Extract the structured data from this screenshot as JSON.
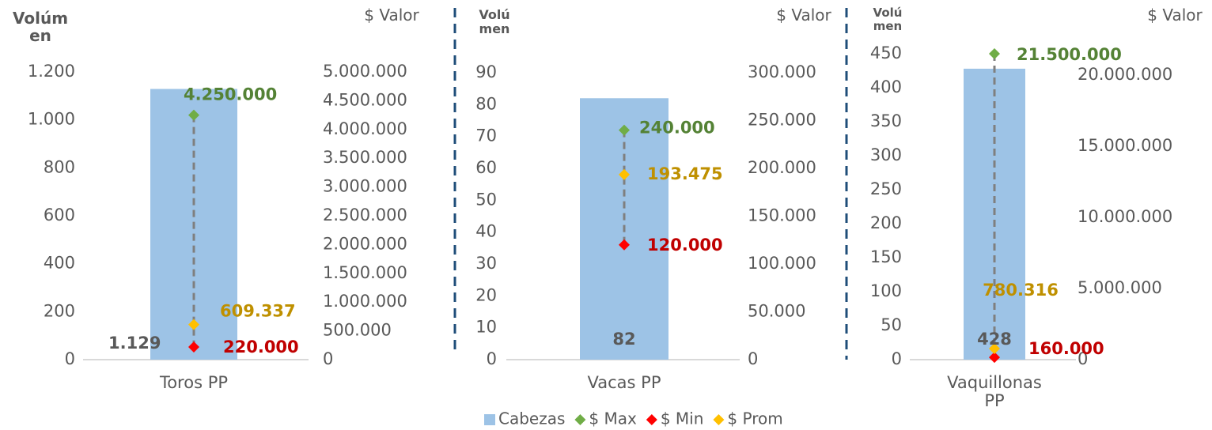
{
  "chart_data": [
    {
      "type": "bar",
      "y_label": "Volúmen",
      "y2_label": "$ Valor",
      "categories": [
        "Toros PP"
      ],
      "ylim": [
        0,
        1200
      ],
      "yticks": [
        0,
        200,
        400,
        600,
        800,
        {
          "value": 1000,
          "label": "1.000"
        },
        {
          "value": 1200,
          "label": "1.200"
        }
      ],
      "y2lim": [
        0,
        5000000
      ],
      "y2ticks": [
        0,
        {
          "value": 500000,
          "label": "500.000"
        },
        {
          "value": 1000000,
          "label": "1.000.000"
        },
        {
          "value": 1500000,
          "label": "1.500.000"
        },
        {
          "value": 2000000,
          "label": "2.000.000"
        },
        {
          "value": 2500000,
          "label": "2.500.000"
        },
        {
          "value": 3000000,
          "label": "3.000.000"
        },
        {
          "value": 3500000,
          "label": "3.500.000"
        },
        {
          "value": 4000000,
          "label": "4.000.000"
        },
        {
          "value": 4500000,
          "label": "4.500.000"
        },
        {
          "value": 5000000,
          "label": "5.000.000"
        }
      ],
      "series": [
        {
          "name": "Cabezas",
          "color": "#9dc3e6",
          "values": [
            1129
          ],
          "value_labels": [
            "1.129"
          ]
        },
        {
          "name": "$ Max",
          "color": "#70ad47",
          "axis": "y2",
          "values": [
            4250000
          ],
          "value_labels": [
            "4.250.000"
          ]
        },
        {
          "name": "$ Min",
          "color": "#ff0000",
          "axis": "y2",
          "values": [
            220000
          ],
          "value_labels": [
            "220.000"
          ]
        },
        {
          "name": "$ Prom",
          "color": "#ffc000",
          "axis": "y2",
          "values": [
            609337
          ],
          "value_labels": [
            "609.337"
          ]
        }
      ]
    },
    {
      "type": "bar",
      "y_label": "Volúmen",
      "y2_label": "$ Valor",
      "categories": [
        "Vacas PP"
      ],
      "ylim": [
        0,
        90
      ],
      "yticks": [
        0,
        10,
        20,
        30,
        40,
        50,
        60,
        70,
        80,
        90
      ],
      "y2lim": [
        0,
        300000
      ],
      "y2ticks": [
        0,
        {
          "value": 50000,
          "label": "50.000"
        },
        {
          "value": 100000,
          "label": "100.000"
        },
        {
          "value": 150000,
          "label": "150.000"
        },
        {
          "value": 200000,
          "label": "200.000"
        },
        {
          "value": 250000,
          "label": "250.000"
        },
        {
          "value": 300000,
          "label": "300.000"
        }
      ],
      "series": [
        {
          "color": "#9dc3e6",
          "values": [
            82
          ]
        },
        {
          "color": "#70ad47",
          "axis": "y2",
          "values": [
            240000
          ],
          "value_labels": [
            "240.000"
          ]
        },
        {
          "color": "#ff0000",
          "axis": "y2",
          "values": [
            120000
          ],
          "value_labels": [
            "120.000"
          ]
        },
        {
          "color": "#ffc000",
          "axis": "y2",
          "values": [
            193475
          ],
          "value_labels": [
            "193.475"
          ]
        }
      ]
    },
    {
      "type": "bar",
      "y_label": "Volúmen",
      "y2_label": "$ Valor",
      "categories": [
        "Vaquillonas PP"
      ],
      "ylim": [
        0,
        450
      ],
      "yticks": [
        0,
        50,
        100,
        150,
        200,
        250,
        300,
        350,
        400,
        450
      ],
      "y2lim": [
        0,
        21500000
      ],
      "y2ticks": [
        0,
        {
          "value": 5000000,
          "label": "5.000.000"
        },
        {
          "value": 10000000,
          "label": "10.000.000"
        },
        {
          "value": 15000000,
          "label": "15.000.000"
        },
        {
          "value": 20000000,
          "label": "20.000.000"
        }
      ],
      "series": [
        {
          "color": "#9dc3e6",
          "values": [
            428
          ]
        },
        {
          "color": "#70ad47",
          "axis": "y2",
          "values": [
            21500000
          ],
          "value_labels": [
            "21.500.000"
          ]
        },
        {
          "color": "#ff0000",
          "axis": "y2",
          "values": [
            160000
          ],
          "value_labels": [
            "160.000"
          ]
        },
        {
          "color": "#ffc000",
          "axis": "y2",
          "values": [
            780316
          ],
          "value_labels": [
            "780.316"
          ]
        }
      ]
    }
  ]
}
